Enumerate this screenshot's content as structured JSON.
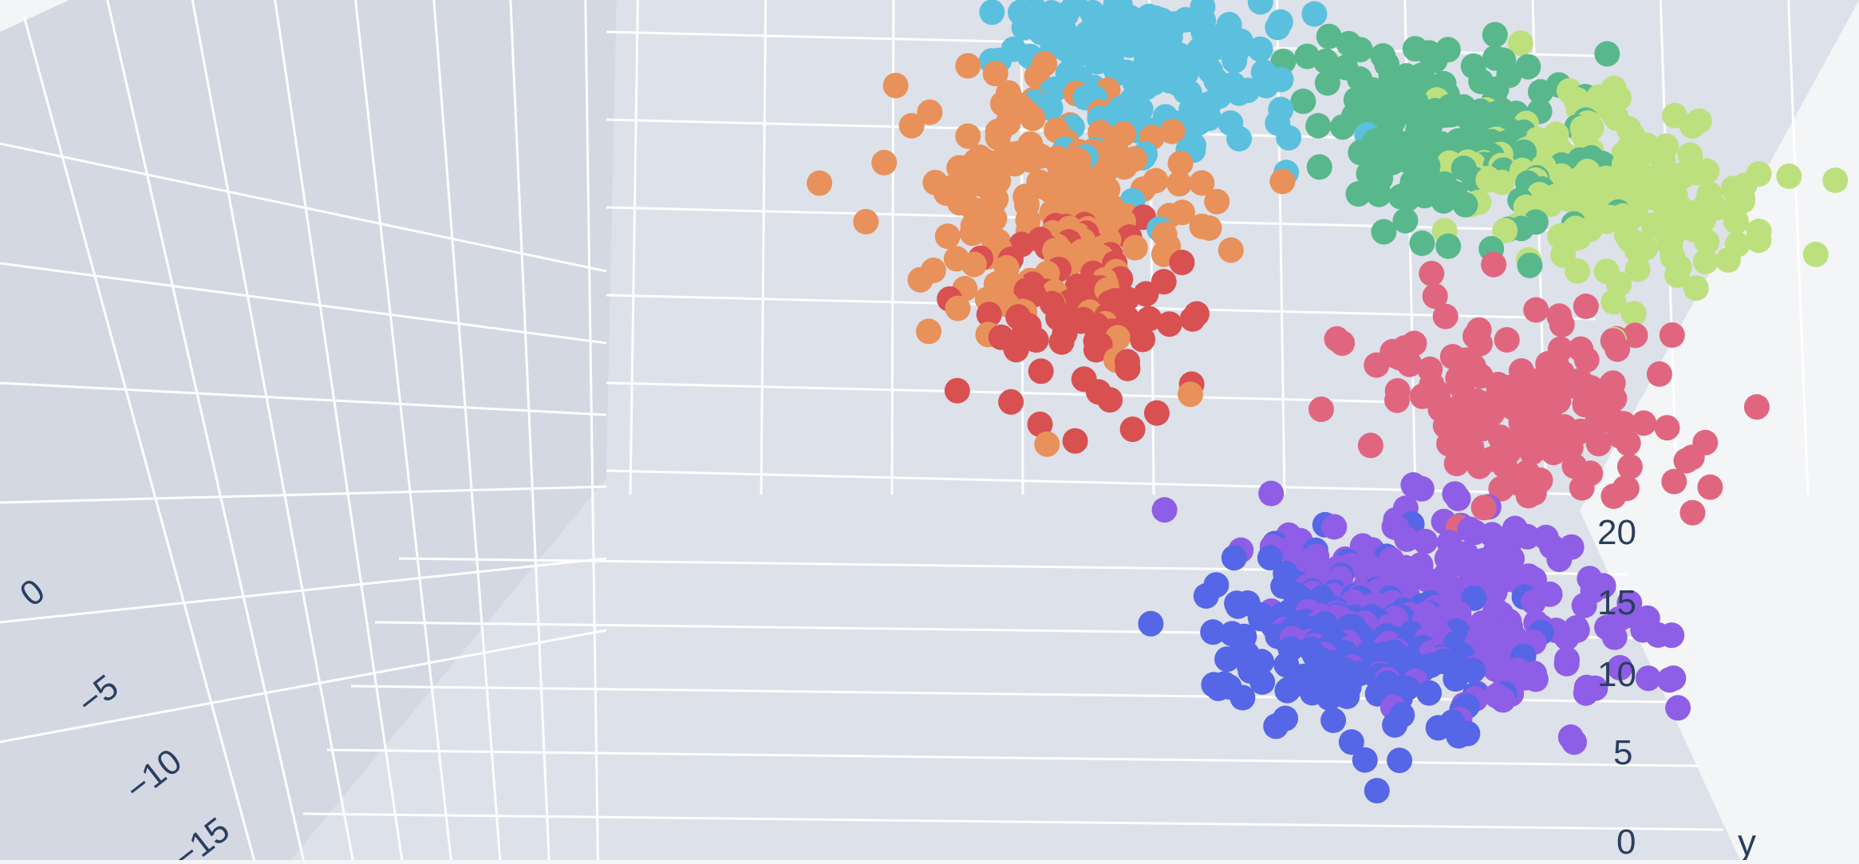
{
  "chart_data": {
    "type": "scatter",
    "subtype": "3d-scatter",
    "grid": true,
    "legend": "none",
    "axes": {
      "y": {
        "label": "y",
        "ticks": [
          "0",
          "5",
          "10",
          "15",
          "20"
        ],
        "range": [
          0,
          22
        ]
      },
      "left_axis": {
        "label": "",
        "ticks": [
          "0",
          "−5",
          "−10",
          "−15"
        ],
        "range": [
          -16,
          2
        ]
      }
    },
    "colors": {
      "background": "#f4f5f7",
      "panel": "#dde1ea",
      "panel_dark": "#d3d8e3",
      "gridline": "#ffffff",
      "tick_text": "#2a3f5f"
    },
    "series": [
      {
        "color": "#5bc0de",
        "center": [
          -2,
          17,
          8
        ],
        "spread": [
          3,
          3,
          3
        ],
        "n": 190
      },
      {
        "color": "#e8915a",
        "center": [
          -1,
          12,
          6
        ],
        "spread": [
          3,
          4,
          3
        ],
        "n": 180
      },
      {
        "color": "#58b88c",
        "center": [
          -9,
          18,
          6
        ],
        "spread": [
          3,
          3,
          3
        ],
        "n": 170
      },
      {
        "color": "#bde07f",
        "center": [
          -13,
          16,
          8
        ],
        "spread": [
          3,
          3,
          3
        ],
        "n": 180
      },
      {
        "color": "#d85050",
        "center": [
          -2,
          9,
          4
        ],
        "spread": [
          2,
          3,
          2
        ],
        "n": 80
      },
      {
        "color": "#e06680",
        "center": [
          -12,
          9,
          4
        ],
        "spread": [
          3,
          3,
          2
        ],
        "n": 160
      },
      {
        "color": "#8e5ee6",
        "center": [
          -11,
          3,
          0
        ],
        "spread": [
          4,
          3,
          3
        ],
        "n": 220
      },
      {
        "color": "#5566e6",
        "center": [
          -9,
          2,
          -2
        ],
        "spread": [
          3,
          3,
          2
        ],
        "n": 180
      }
    ]
  }
}
